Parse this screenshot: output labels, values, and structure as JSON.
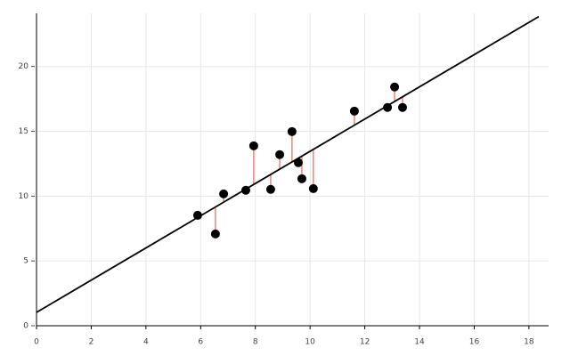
{
  "chart_data": {
    "type": "scatter",
    "x": [
      5.89,
      6.54,
      6.84,
      7.65,
      7.94,
      8.56,
      8.89,
      9.34,
      9.57,
      9.7,
      10.12,
      11.62,
      12.83,
      13.09,
      13.38
    ],
    "series": [
      {
        "color": "#000000",
        "values": [
          8.52,
          7.08,
          10.17,
          10.45,
          13.88,
          10.52,
          13.2,
          14.98,
          12.58,
          11.34,
          10.58,
          16.56,
          16.84,
          18.42,
          16.84
        ]
      }
    ],
    "fit_line": {
      "x": [
        0,
        18.36
      ],
      "values": [
        1.03,
        23.85
      ],
      "color": "#000000"
    },
    "residual_color": "#e8736c",
    "xlim": [
      0,
      18.72
    ],
    "ylim": [
      0,
      24.1
    ],
    "xticks": [
      0,
      2,
      4,
      6,
      8,
      10,
      12,
      14,
      16,
      18
    ],
    "yticks": [
      0,
      5,
      10,
      15,
      20
    ],
    "grid": true
  }
}
